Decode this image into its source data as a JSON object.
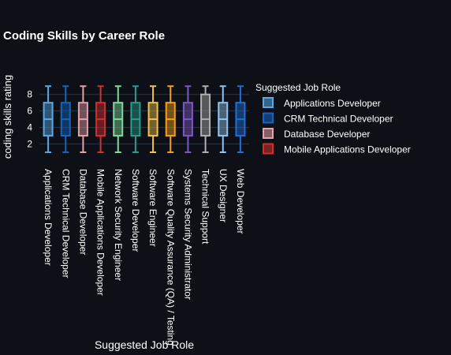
{
  "chart_data": {
    "type": "box",
    "title": "Coding Skills by Career Role",
    "xlabel": "Suggested Job Role",
    "ylabel": "coding skills rating",
    "ylim": [
      1,
      9.5
    ],
    "y_ticks": [
      2,
      4,
      6,
      8
    ],
    "grid": true,
    "legend": {
      "title": "Suggested Job Role",
      "placement": "top-right"
    },
    "series": [
      {
        "name": "Applications Developer",
        "color": "#5aa9e6",
        "min": 1,
        "q1": 3,
        "median": 5,
        "q3": 7,
        "max": 9
      },
      {
        "name": "CRM Technical Developer",
        "color": "#1565c0",
        "min": 1,
        "q1": 3,
        "median": 5,
        "q3": 7,
        "max": 9
      },
      {
        "name": "Database Developer",
        "color": "#e6a0a8",
        "min": 1,
        "q1": 3,
        "median": 5,
        "q3": 7,
        "max": 9
      },
      {
        "name": "Mobile Applications Developer",
        "color": "#d32f2f",
        "min": 1,
        "q1": 3,
        "median": 5,
        "q3": 7,
        "max": 9
      },
      {
        "name": "Network Security Engineer",
        "color": "#7fd99c",
        "min": 1,
        "q1": 3,
        "median": 5,
        "q3": 7,
        "max": 9
      },
      {
        "name": "Software Developer",
        "color": "#2a9d8f",
        "min": 1,
        "q1": 3,
        "median": 5,
        "q3": 7,
        "max": 9
      },
      {
        "name": "Software Engineer",
        "color": "#f2c14e",
        "min": 1,
        "q1": 3,
        "median": 5,
        "q3": 7,
        "max": 9
      },
      {
        "name": "Software Quality Assurance (QA) / Testing",
        "color": "#f5a01a",
        "min": 1,
        "q1": 3,
        "median": 5,
        "q3": 7,
        "max": 9
      },
      {
        "name": "Systems Security Administrator",
        "color": "#7e57c2",
        "min": 1,
        "q1": 3,
        "median": 5,
        "q3": 7,
        "max": 9
      },
      {
        "name": "Technical Support",
        "color": "#b0b0b0",
        "min": 1,
        "q1": 3,
        "median": 5,
        "q3": 8,
        "max": 9
      },
      {
        "name": "UX Designer",
        "color": "#90c4f0",
        "min": 1,
        "q1": 3,
        "median": 5,
        "q3": 7,
        "max": 9
      },
      {
        "name": "Web Developer",
        "color": "#1e6fd9",
        "min": 1,
        "q1": 3,
        "median": 5,
        "q3": 7,
        "max": 9
      }
    ],
    "legend_visible": [
      "Applications Developer",
      "CRM Technical Developer",
      "Database Developer",
      "Mobile Applications Developer"
    ]
  }
}
